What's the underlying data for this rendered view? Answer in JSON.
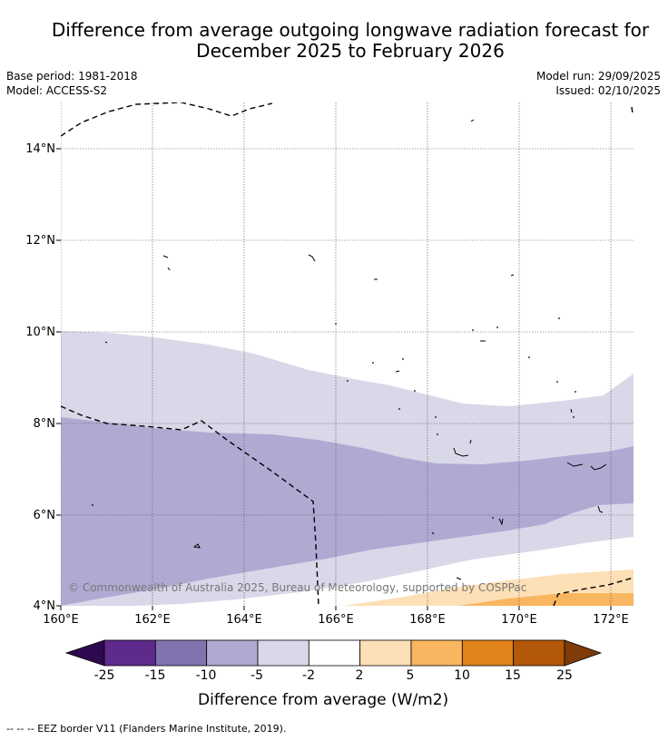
{
  "title_line1": "Difference from average outgoing longwave radiation forecast for",
  "title_line2": "December 2025 to February 2026",
  "base_period": "Base period: 1981-2018",
  "model": "Model: ACCESS-S2",
  "model_run": "Model run: 29/09/2025",
  "issued": "Issued: 02/10/2025",
  "copyright": "© Commonwealth of Australia 2025, Bureau of Meteorology, supported by COSPPac",
  "footnote": "--  --  -- EEZ border V11 (Flanders Marine Institute, 2019).",
  "map": {
    "lon_labels": [
      "160°E",
      "162°E",
      "164°E",
      "166°E",
      "168°E",
      "170°E",
      "172°E"
    ],
    "lat_labels": [
      "14°N",
      "12°N",
      "10°N",
      "8°N",
      "6°N",
      "4°N"
    ],
    "lon_range": [
      160,
      172.5
    ],
    "lat_range": [
      4,
      15.1
    ]
  },
  "colorbar": {
    "title": "Difference from average (W/m2)",
    "tick_labels": [
      "-25",
      "-15",
      "-10",
      "-5",
      "-2",
      "2",
      "5",
      "10",
      "15",
      "25"
    ],
    "colors": [
      "#5e2a8c",
      "#8273b0",
      "#b0aad3",
      "#d8d8e9",
      "#ffffff",
      "#fde0b6",
      "#f9b660",
      "#e2821b",
      "#b35806"
    ],
    "low_extend_color": "#2d0a4f",
    "high_extend_color": "#7f3b08"
  }
}
